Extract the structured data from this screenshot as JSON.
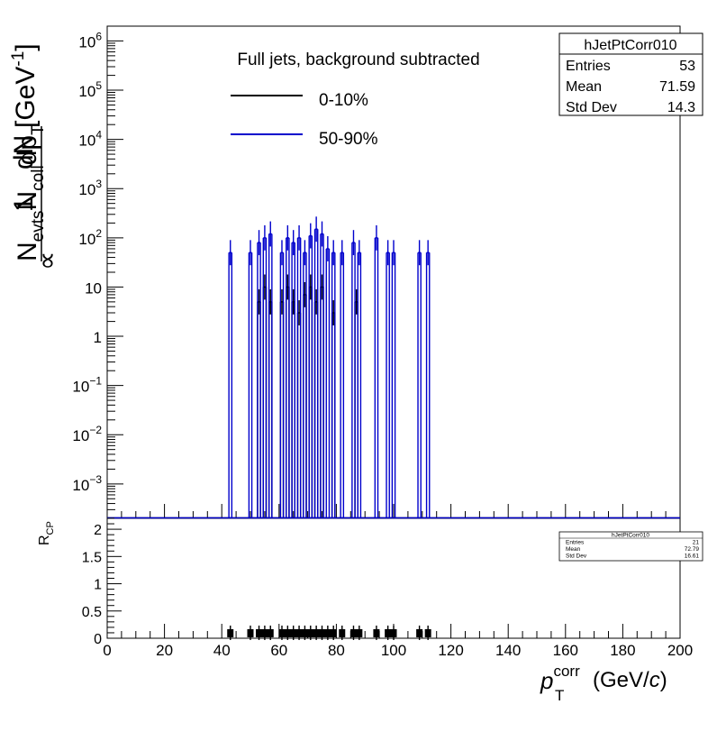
{
  "chart_data": [
    {
      "type": "histogram",
      "panel": "top",
      "title": "Full jets, background subtracted",
      "xlabel": "p_T^corr (GeV/c)",
      "ylabel": "(1/N_evts N_coll) dN/dp_T [GeV^-1]",
      "yscale": "log",
      "ylim": [
        0.0002,
        2000000
      ],
      "xlim": [
        0,
        200
      ],
      "y_ticks": [
        "10^-3",
        "10^-2",
        "10^-1",
        "1",
        "10",
        "10^2",
        "10^3",
        "10^4",
        "10^5",
        "10^6"
      ],
      "y_ticks_values": [
        0.001,
        0.01,
        0.1,
        1,
        10,
        100,
        1000,
        10000,
        100000,
        1000000
      ],
      "legend": [
        "0-10%",
        "50-90%"
      ],
      "series": [
        {
          "name": "0-10%",
          "color": "#000000",
          "x": [
            53,
            55,
            57,
            61,
            63,
            65,
            67,
            69,
            71,
            73,
            75,
            79,
            87
          ],
          "values": [
            5,
            10,
            5,
            5,
            10,
            5,
            3,
            7,
            10,
            5,
            10,
            3,
            5
          ]
        },
        {
          "name": "50-90%",
          "color": "#0000cc",
          "x": [
            43,
            50,
            53,
            55,
            57,
            61,
            63,
            65,
            67,
            69,
            71,
            73,
            75,
            77,
            79,
            82,
            86,
            88,
            94,
            98,
            100,
            109,
            112
          ],
          "values": [
            50,
            50,
            80,
            100,
            120,
            50,
            100,
            80,
            100,
            50,
            110,
            150,
            120,
            60,
            50,
            50,
            80,
            50,
            100,
            50,
            50,
            50,
            50
          ]
        }
      ],
      "stats_box": {
        "name": "hJetPtCorr010",
        "entries_label": "Entries",
        "entries": "53",
        "mean_label": "Mean",
        "mean": "71.59",
        "std_label": "Std Dev",
        "std": "14.3"
      }
    },
    {
      "type": "histogram",
      "panel": "bottom",
      "ylabel": "R_CP",
      "xlabel": "p_T^corr (GeV/c)",
      "xlim": [
        0,
        200
      ],
      "ylim": [
        0,
        2.2
      ],
      "x_ticks": [
        "0",
        "20",
        "40",
        "60",
        "80",
        "100",
        "120",
        "140",
        "160",
        "180",
        "200"
      ],
      "y_ticks": [
        "0",
        "0.5",
        "1",
        "1.5",
        "2"
      ],
      "series": [
        {
          "name": "ratio",
          "color": "#000000",
          "x": [
            43,
            50,
            53,
            55,
            57,
            61,
            63,
            65,
            67,
            69,
            71,
            73,
            75,
            77,
            79,
            82,
            86,
            88,
            94,
            98,
            100,
            109,
            112
          ],
          "values": [
            0.1,
            0.1,
            0.1,
            0.1,
            0.1,
            0.1,
            0.1,
            0.1,
            0.1,
            0.1,
            0.1,
            0.1,
            0.1,
            0.1,
            0.1,
            0.1,
            0.1,
            0.1,
            0.1,
            0.1,
            0.1,
            0.1,
            0.1
          ]
        }
      ],
      "stats_box": {
        "name": "hJetPtCorr010",
        "entries_label": "Entries",
        "entries": "21",
        "mean_label": "Mean",
        "mean": "72.79",
        "std_label": "Std Dev",
        "std": "16.61"
      }
    }
  ],
  "axis_text": {
    "ylabel_one": "1",
    "ylabel_dN": "dN",
    "ylabel_N": "N",
    "ylabel_evts": "evts",
    "ylabel_Ncoll": "N",
    "ylabel_coll": "coll",
    "ylabel_dp": "dp",
    "ylabel_T": "T",
    "ylabel_unit": "[GeV",
    "ylabel_exp": "-1",
    "ylabel_close": "]",
    "prop": "∝",
    "rcp_R": "R",
    "rcp_CP": "CP",
    "xlabel_p": "p",
    "xlabel_corr": "corr",
    "xlabel_T": "T",
    "xlabel_unit": "(GeV/",
    "xlabel_c": "c",
    "xlabel_close": ")"
  }
}
